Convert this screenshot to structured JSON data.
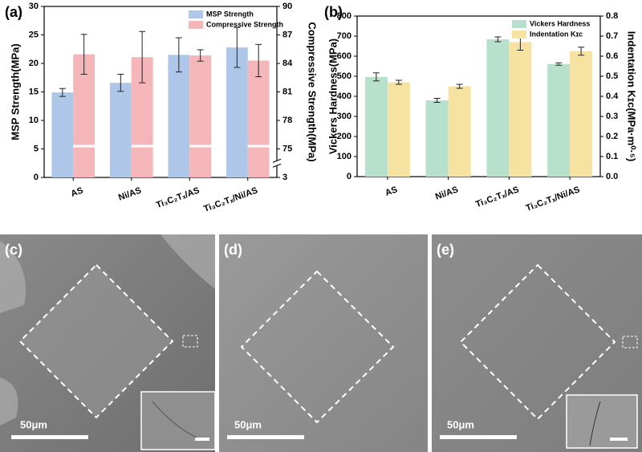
{
  "chart_data": [
    {
      "type": "bar",
      "panel": "(a)",
      "categories": [
        "AS",
        "Ni/AS",
        "Ti₃C₂Tₓ/AS",
        "Ti₃C₂Tₓ/Ni/AS"
      ],
      "series": [
        {
          "name": "MSP Strength",
          "color": "#aec7e8",
          "values": [
            14.9,
            16.6,
            21.5,
            22.8
          ],
          "errors": [
            0.7,
            1.5,
            3.0,
            3.5
          ]
        },
        {
          "name": "Compressive Strength",
          "color": "#f4b6b8",
          "axis": "y2",
          "values": [
            84.96,
            84.66,
            84.84,
            84.3
          ],
          "errors": [
            2.1,
            2.7,
            0.6,
            1.7
          ]
        }
      ],
      "y_label": "MSP Strength(MPa)",
      "y2_label": "Compressive Strength(MPa)",
      "ylim": [
        0,
        30
      ],
      "yticks": [
        0,
        5,
        10,
        15,
        20,
        25,
        30
      ],
      "y2lim": [
        3,
        90
      ],
      "y2ticks": [
        3,
        75,
        78,
        81,
        84,
        87,
        90
      ],
      "y2_axis_break": true,
      "legend": "upper right"
    },
    {
      "type": "bar",
      "panel": "(b)",
      "categories": [
        "AS",
        "Ni/AS",
        "Ti₃C₂Tₓ/AS",
        "Ti₃C₂Tₓ/Ni/AS"
      ],
      "series": [
        {
          "name": "Vickers Hardness",
          "color": "#b7e1cd",
          "values": [
            497,
            380,
            684,
            561
          ],
          "errors": [
            20,
            10,
            12,
            6
          ]
        },
        {
          "name": "Indentation Kɪᴄ",
          "color": "#f7e3a1",
          "axis": "y2",
          "values": [
            0.47,
            0.45,
            0.67,
            0.625
          ],
          "errors": [
            0.01,
            0.01,
            0.04,
            0.02
          ]
        }
      ],
      "y_label": "Vickers Hardness(MPa)",
      "y2_label": "Indentation Kɪᴄ(MPa·m⁰·⁵)",
      "ylim": [
        0,
        800
      ],
      "yticks": [
        0,
        100,
        200,
        300,
        400,
        500,
        600,
        700,
        800
      ],
      "y2lim": [
        0,
        0.8
      ],
      "y2ticks": [
        {
          "value": 0,
          "label": "0.0"
        },
        0.1,
        0.2,
        0.3,
        0.4,
        0.5,
        0.6,
        0.7,
        0.8
      ],
      "legend": "upper right"
    }
  ],
  "images": [
    {
      "label": "(c)",
      "scale_bar": "50μm"
    },
    {
      "label": "(d)",
      "scale_bar": "50μm"
    },
    {
      "label": "(e)",
      "scale_bar": "50μm"
    }
  ]
}
